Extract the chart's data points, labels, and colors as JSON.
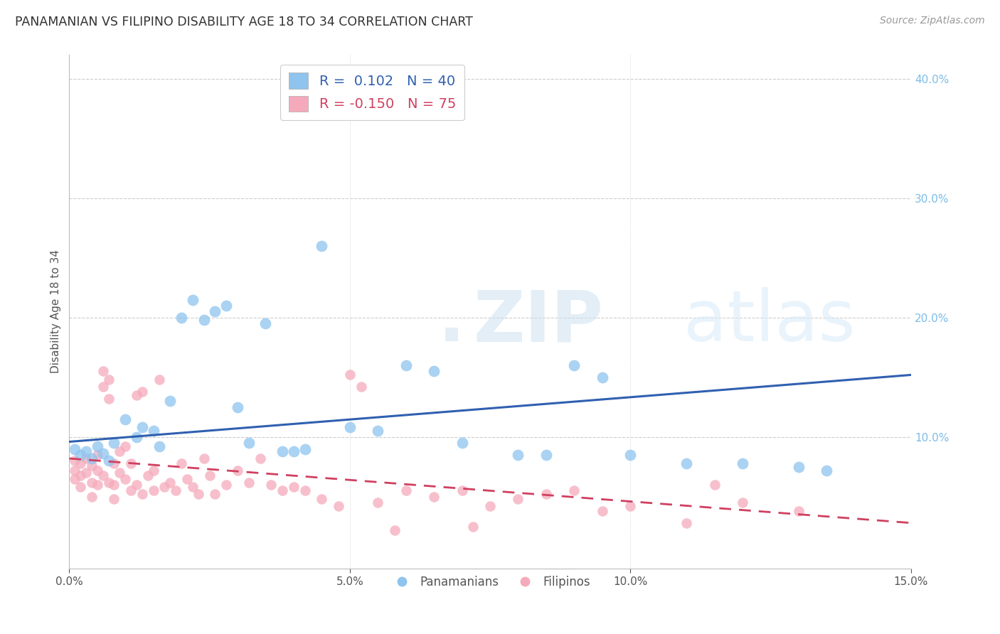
{
  "title": "PANAMANIAN VS FILIPINO DISABILITY AGE 18 TO 34 CORRELATION CHART",
  "source": "Source: ZipAtlas.com",
  "ylabel": "Disability Age 18 to 34",
  "xlim": [
    0.0,
    0.15
  ],
  "ylim": [
    -0.01,
    0.42
  ],
  "xticks": [
    0.0,
    0.05,
    0.1,
    0.15
  ],
  "xticklabels": [
    "0.0%",
    "5.0%",
    "10.0%",
    "15.0%"
  ],
  "yticks_right": [
    0.1,
    0.2,
    0.3,
    0.4
  ],
  "ytick_labels_right": [
    "10.0%",
    "20.0%",
    "30.0%",
    "40.0%"
  ],
  "legend_r_pan": " 0.102",
  "legend_n_pan": "40",
  "legend_r_fil": "-0.150",
  "legend_n_fil": "75",
  "pan_color": "#8EC4EE",
  "fil_color": "#F5AABB",
  "pan_line_color": "#3060B0",
  "fil_line_color": "#D04060",
  "watermark_dot": ".",
  "watermark_zip": "ZIP",
  "watermark_atlas": "atlas",
  "pan_line_y0": 0.096,
  "pan_line_y1": 0.152,
  "fil_line_y0": 0.082,
  "fil_line_y1": 0.028,
  "pan_scatter_x": [
    0.001,
    0.002,
    0.003,
    0.004,
    0.005,
    0.006,
    0.007,
    0.008,
    0.01,
    0.012,
    0.013,
    0.015,
    0.016,
    0.018,
    0.02,
    0.022,
    0.024,
    0.026,
    0.028,
    0.03,
    0.032,
    0.035,
    0.038,
    0.04,
    0.042,
    0.045,
    0.05,
    0.055,
    0.06,
    0.065,
    0.07,
    0.08,
    0.085,
    0.09,
    0.095,
    0.1,
    0.11,
    0.12,
    0.13,
    0.135
  ],
  "pan_scatter_y": [
    0.09,
    0.085,
    0.088,
    0.082,
    0.092,
    0.086,
    0.08,
    0.095,
    0.115,
    0.1,
    0.108,
    0.105,
    0.092,
    0.13,
    0.2,
    0.215,
    0.198,
    0.205,
    0.21,
    0.125,
    0.095,
    0.195,
    0.088,
    0.088,
    0.09,
    0.26,
    0.108,
    0.105,
    0.16,
    0.155,
    0.095,
    0.085,
    0.085,
    0.16,
    0.15,
    0.085,
    0.078,
    0.078,
    0.075,
    0.072
  ],
  "fil_scatter_x": [
    0.001,
    0.001,
    0.001,
    0.002,
    0.002,
    0.002,
    0.003,
    0.003,
    0.004,
    0.004,
    0.004,
    0.005,
    0.005,
    0.005,
    0.006,
    0.006,
    0.006,
    0.007,
    0.007,
    0.007,
    0.008,
    0.008,
    0.008,
    0.009,
    0.009,
    0.01,
    0.01,
    0.011,
    0.011,
    0.012,
    0.012,
    0.013,
    0.013,
    0.014,
    0.015,
    0.015,
    0.016,
    0.017,
    0.018,
    0.019,
    0.02,
    0.021,
    0.022,
    0.023,
    0.024,
    0.025,
    0.026,
    0.028,
    0.03,
    0.032,
    0.034,
    0.036,
    0.038,
    0.04,
    0.042,
    0.045,
    0.048,
    0.05,
    0.052,
    0.055,
    0.058,
    0.06,
    0.065,
    0.07,
    0.072,
    0.075,
    0.08,
    0.085,
    0.09,
    0.095,
    0.1,
    0.11,
    0.115,
    0.12,
    0.13
  ],
  "fil_scatter_y": [
    0.08,
    0.072,
    0.065,
    0.078,
    0.068,
    0.058,
    0.082,
    0.07,
    0.076,
    0.062,
    0.05,
    0.085,
    0.072,
    0.06,
    0.155,
    0.142,
    0.068,
    0.148,
    0.132,
    0.062,
    0.078,
    0.06,
    0.048,
    0.088,
    0.07,
    0.092,
    0.065,
    0.078,
    0.055,
    0.135,
    0.06,
    0.138,
    0.052,
    0.068,
    0.072,
    0.055,
    0.148,
    0.058,
    0.062,
    0.055,
    0.078,
    0.065,
    0.058,
    0.052,
    0.082,
    0.068,
    0.052,
    0.06,
    0.072,
    0.062,
    0.082,
    0.06,
    0.055,
    0.058,
    0.055,
    0.048,
    0.042,
    0.152,
    0.142,
    0.045,
    0.022,
    0.055,
    0.05,
    0.055,
    0.025,
    0.042,
    0.048,
    0.052,
    0.055,
    0.038,
    0.042,
    0.028,
    0.06,
    0.045,
    0.038
  ]
}
